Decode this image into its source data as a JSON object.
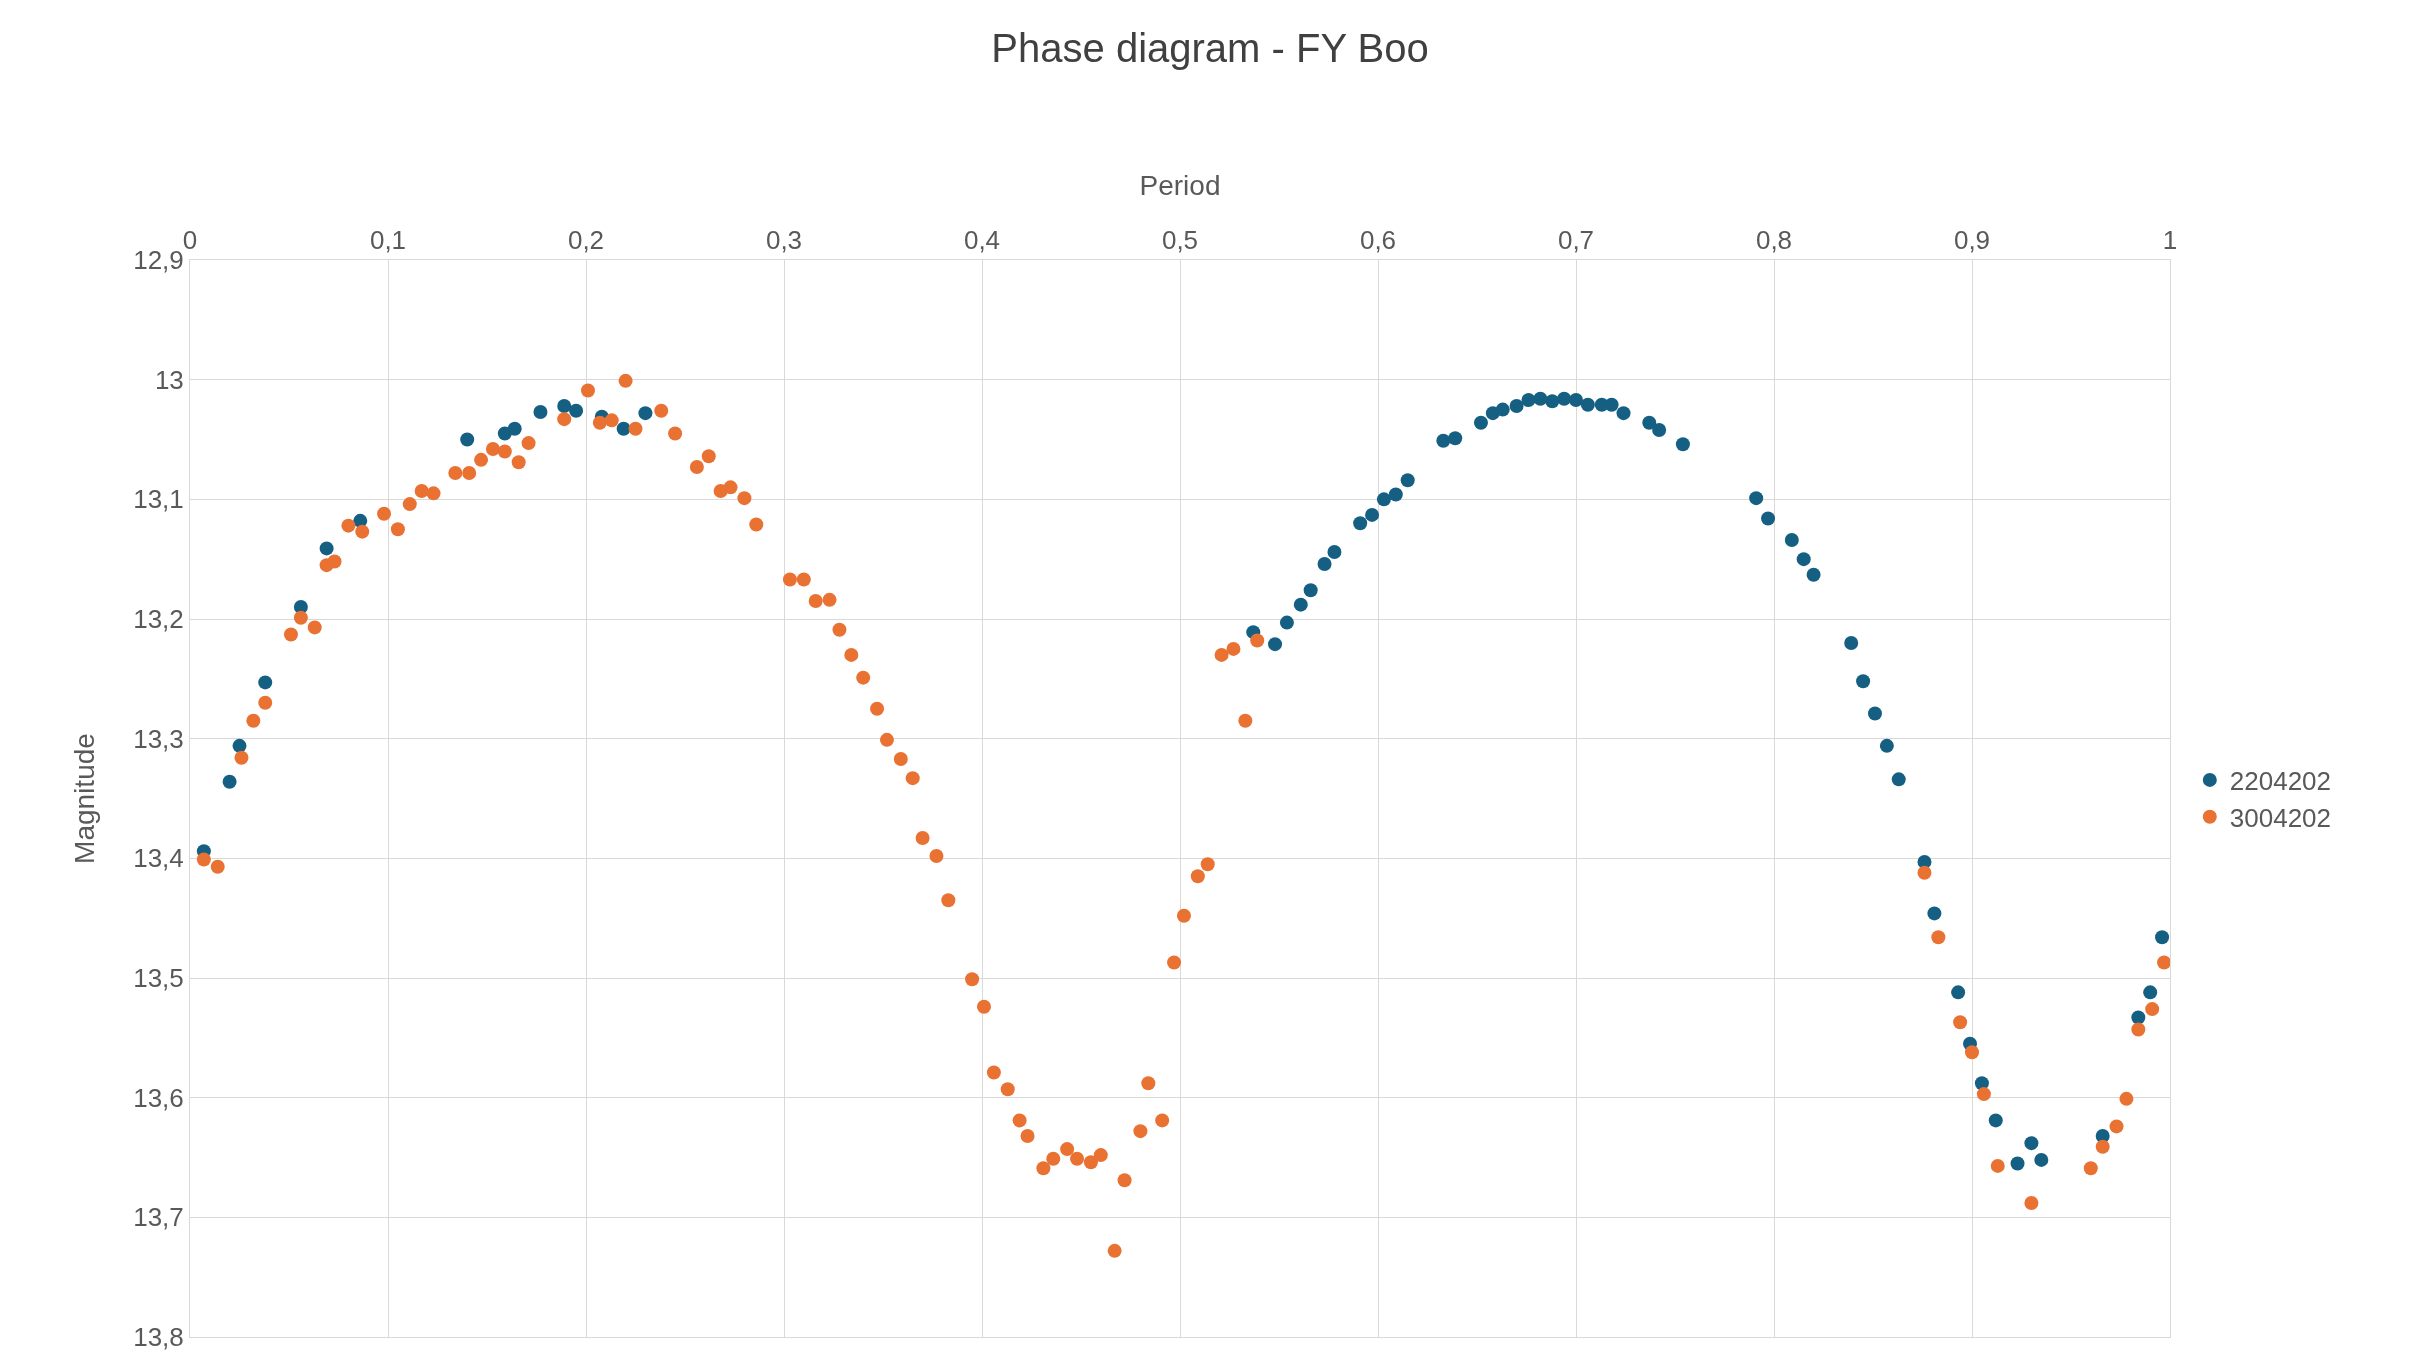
{
  "chart_data": {
    "type": "scatter",
    "title": "Phase diagram - FY Boo",
    "xlabel": "Period",
    "ylabel": "Magnitude",
    "xlim": [
      0,
      1
    ],
    "xticks": [
      0,
      {
        "value": 0.1,
        "label": "0,1"
      },
      {
        "value": 0.2,
        "label": "0,2"
      },
      {
        "value": 0.3,
        "label": "0,3"
      },
      {
        "value": 0.4,
        "label": "0,4"
      },
      {
        "value": 0.5,
        "label": "0,5"
      },
      {
        "value": 0.6,
        "label": "0,6"
      },
      {
        "value": 0.7,
        "label": "0,7"
      },
      {
        "value": 0.8,
        "label": "0,8"
      },
      {
        "value": 0.9,
        "label": "0,9"
      },
      1
    ],
    "ylim": [
      13.8,
      12.9
    ],
    "yticks": [
      {
        "value": 12.9,
        "label": "12,9"
      },
      13,
      {
        "value": 13.1,
        "label": "13,1"
      },
      {
        "value": 13.2,
        "label": "13,2"
      },
      {
        "value": 13.3,
        "label": "13,3"
      },
      {
        "value": 13.4,
        "label": "13,4"
      },
      {
        "value": 13.5,
        "label": "13,5"
      },
      {
        "value": 13.6,
        "label": "13,6"
      },
      {
        "value": 13.7,
        "label": "13,7"
      },
      {
        "value": 13.8,
        "label": "13,8"
      }
    ],
    "grid": true,
    "legend": "right",
    "marker": "circle",
    "series": [
      {
        "name": "2204202",
        "color": "#156082",
        "x": [
          0.007,
          0.02,
          0.025,
          0.038,
          0.056,
          0.069,
          0.086,
          0.14,
          0.159,
          0.164,
          0.177,
          0.189,
          0.195,
          0.208,
          0.219,
          0.23,
          0.537,
          0.548,
          0.554,
          0.561,
          0.566,
          0.573,
          0.578,
          0.591,
          0.597,
          0.603,
          0.609,
          0.615,
          0.633,
          0.639,
          0.652,
          0.658,
          0.663,
          0.67,
          0.676,
          0.682,
          0.688,
          0.694,
          0.7,
          0.706,
          0.713,
          0.718,
          0.724,
          0.737,
          0.742,
          0.754,
          0.791,
          0.797,
          0.809,
          0.815,
          0.82,
          0.839,
          0.845,
          0.851,
          0.857,
          0.863,
          0.876,
          0.881,
          0.893,
          0.899,
          0.905,
          0.912,
          0.923,
          0.93,
          0.935,
          0.966,
          0.984,
          0.99,
          0.996
        ],
        "values": [
          13.394,
          13.336,
          13.306,
          13.253,
          13.19,
          13.141,
          13.118,
          13.05,
          13.045,
          13.041,
          13.027,
          13.022,
          13.026,
          13.031,
          13.041,
          13.028,
          13.211,
          13.221,
          13.203,
          13.188,
          13.176,
          13.154,
          13.144,
          13.12,
          13.113,
          13.1,
          13.096,
          13.084,
          13.051,
          13.049,
          13.036,
          13.028,
          13.025,
          13.022,
          13.017,
          13.016,
          13.018,
          13.016,
          13.017,
          13.021,
          13.021,
          13.021,
          13.028,
          13.036,
          13.042,
          13.054,
          13.099,
          13.116,
          13.134,
          13.15,
          13.163,
          13.22,
          13.252,
          13.279,
          13.306,
          13.334,
          13.403,
          13.446,
          13.512,
          13.555,
          13.588,
          13.619,
          13.655,
          13.638,
          13.652,
          13.632,
          13.533,
          13.512,
          13.466
        ]
      },
      {
        "name": "3004202",
        "color": "#e97132",
        "x": [
          0.007,
          0.014,
          0.026,
          0.032,
          0.038,
          0.051,
          0.056,
          0.063,
          0.069,
          0.073,
          0.08,
          0.087,
          0.098,
          0.105,
          0.111,
          0.117,
          0.123,
          0.134,
          0.141,
          0.147,
          0.153,
          0.159,
          0.166,
          0.171,
          0.189,
          0.201,
          0.207,
          0.213,
          0.22,
          0.225,
          0.238,
          0.245,
          0.256,
          0.262,
          0.268,
          0.273,
          0.28,
          0.286,
          0.303,
          0.31,
          0.316,
          0.323,
          0.328,
          0.334,
          0.34,
          0.347,
          0.352,
          0.359,
          0.365,
          0.37,
          0.377,
          0.383,
          0.395,
          0.401,
          0.406,
          0.413,
          0.419,
          0.423,
          0.431,
          0.436,
          0.443,
          0.448,
          0.455,
          0.46,
          0.467,
          0.472,
          0.48,
          0.484,
          0.491,
          0.497,
          0.502,
          0.509,
          0.514,
          0.521,
          0.527,
          0.533,
          0.539,
          0.876,
          0.883,
          0.894,
          0.9,
          0.906,
          0.913,
          0.93,
          0.96,
          0.966,
          0.973,
          0.978,
          0.984,
          0.991,
          0.997
        ],
        "values": [
          13.401,
          13.407,
          13.316,
          13.285,
          13.27,
          13.213,
          13.199,
          13.207,
          13.155,
          13.152,
          13.122,
          13.127,
          13.112,
          13.125,
          13.104,
          13.093,
          13.095,
          13.078,
          13.078,
          13.067,
          13.058,
          13.06,
          13.069,
          13.053,
          13.033,
          13.009,
          13.036,
          13.034,
          13.001,
          13.041,
          13.026,
          13.045,
          13.073,
          13.064,
          13.093,
          13.09,
          13.099,
          13.121,
          13.167,
          13.167,
          13.185,
          13.184,
          13.209,
          13.23,
          13.249,
          13.275,
          13.301,
          13.317,
          13.333,
          13.383,
          13.398,
          13.435,
          13.501,
          13.524,
          13.579,
          13.593,
          13.619,
          13.632,
          13.659,
          13.651,
          13.643,
          13.651,
          13.654,
          13.648,
          13.728,
          13.669,
          13.628,
          13.588,
          13.619,
          13.487,
          13.448,
          13.415,
          13.405,
          13.23,
          13.225,
          13.285,
          13.218,
          13.412,
          13.466,
          13.537,
          13.562,
          13.597,
          13.657,
          13.688,
          13.659,
          13.641,
          13.624,
          13.601,
          13.543,
          13.526,
          13.487
        ]
      }
    ]
  }
}
